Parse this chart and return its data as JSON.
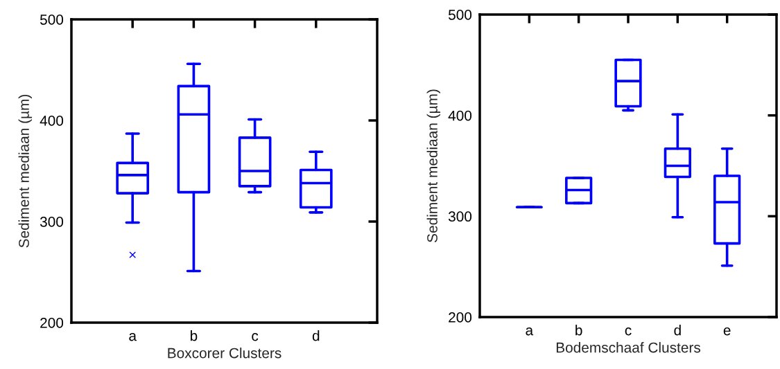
{
  "chart_data": [
    {
      "type": "box",
      "xlabel": "Boxcorer Clusters",
      "ylabel": "Sediment mediaan (µm)",
      "categories": [
        "a",
        "b",
        "c",
        "d"
      ],
      "color": "#0000ff",
      "marker": "cross",
      "ylim": [
        200,
        500
      ],
      "yticks": [
        200,
        300,
        400,
        500
      ],
      "grid": false,
      "boxes": [
        {
          "low": 299,
          "q1": 328,
          "median": 346,
          "q3": 358,
          "high": 387,
          "outliers": [
            267
          ]
        },
        {
          "low": 251,
          "q1": 329,
          "median": 406,
          "q3": 434,
          "high": 456
        },
        {
          "low": 329,
          "q1": 335,
          "median": 350,
          "q3": 383,
          "high": 401
        },
        {
          "low": 309,
          "q1": 314,
          "median": 338,
          "q3": 351,
          "high": 369
        }
      ]
    },
    {
      "type": "box",
      "xlabel": "Bodemschaaf Clusters",
      "ylabel": "Sediment mediaan (µm)",
      "categories": [
        "a",
        "b",
        "c",
        "d",
        "e"
      ],
      "color": "#0000ff",
      "marker": "cross",
      "ylim": [
        200,
        500
      ],
      "yticks": [
        200,
        300,
        400,
        500
      ],
      "grid": false,
      "boxes": [
        {
          "low": 309,
          "q1": 309,
          "median": 309,
          "q3": 309,
          "high": 309
        },
        {
          "low": 313,
          "q1": 313,
          "median": 326,
          "q3": 338,
          "high": 338
        },
        {
          "low": 405,
          "q1": 409,
          "median": 434,
          "q3": 455,
          "high": 455
        },
        {
          "low": 299,
          "q1": 339,
          "median": 350,
          "q3": 367,
          "high": 401
        },
        {
          "low": 251,
          "q1": 273,
          "median": 314,
          "q3": 340,
          "high": 367
        }
      ]
    }
  ]
}
